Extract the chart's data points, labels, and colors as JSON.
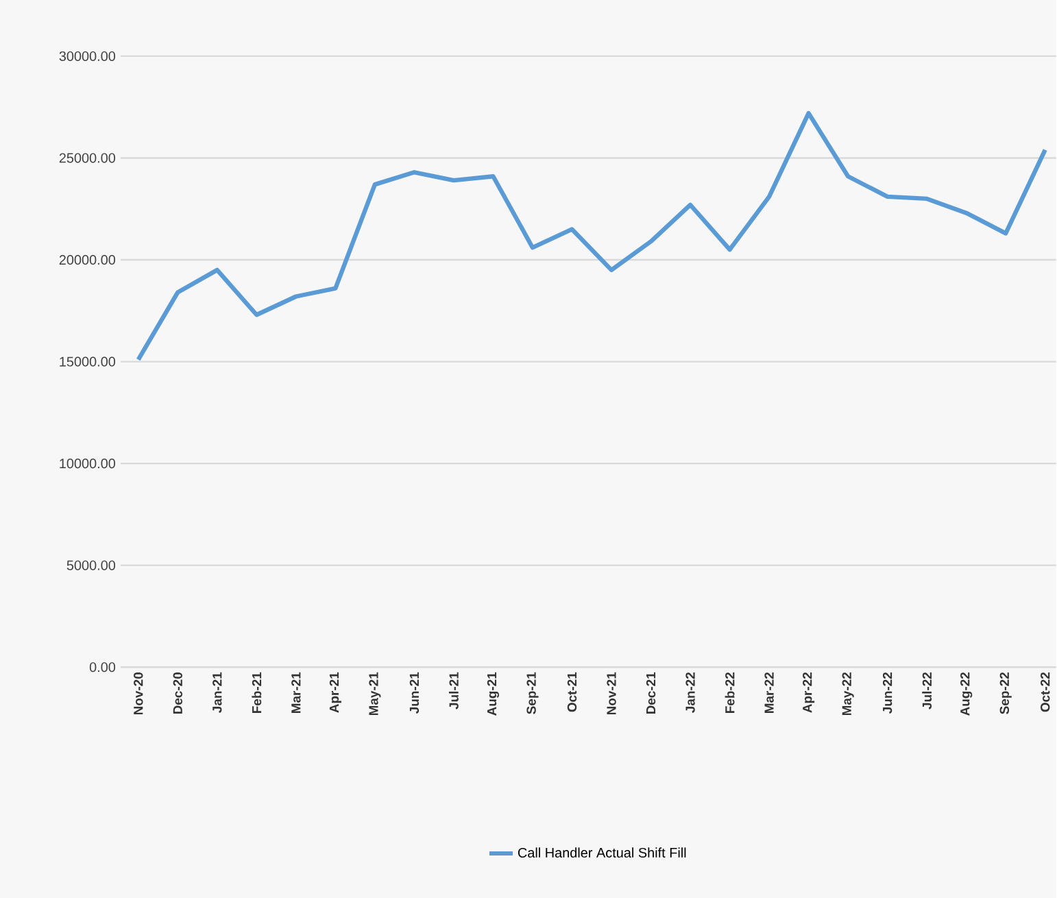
{
  "chart_data": {
    "type": "line",
    "categories": [
      "Nov-20",
      "Dec-20",
      "Jan-21",
      "Feb-21",
      "Mar-21",
      "Apr-21",
      "May-21",
      "Jun-21",
      "Jul-21",
      "Aug-21",
      "Sep-21",
      "Oct-21",
      "Nov-21",
      "Dec-21",
      "Jan-22",
      "Feb-22",
      "Mar-22",
      "Apr-22",
      "May-22",
      "Jun-22",
      "Jul-22",
      "Aug-22",
      "Sep-22",
      "Oct-22"
    ],
    "series": [
      {
        "name": "Call Handler Actual Shift Fill",
        "color": "#5b9bd5",
        "values": [
          15100,
          18400,
          19500,
          17300,
          18200,
          18600,
          23700,
          24300,
          23900,
          24100,
          20600,
          21500,
          19500,
          20900,
          22700,
          20500,
          23100,
          27200,
          24100,
          23100,
          23000,
          22300,
          21300,
          25400
        ]
      }
    ],
    "ylim": [
      0,
      30000
    ],
    "yticks": [
      {
        "value": 0,
        "label": "0.00"
      },
      {
        "value": 5000,
        "label": "5000.00"
      },
      {
        "value": 10000,
        "label": "10000.00"
      },
      {
        "value": 15000,
        "label": "15000.00"
      },
      {
        "value": 20000,
        "label": "20000.00"
      },
      {
        "value": 25000,
        "label": "25000.00"
      },
      {
        "value": 30000,
        "label": "30000.00"
      }
    ],
    "grid": "y",
    "legend": "bottom",
    "marker": "none",
    "line_style": "solid"
  }
}
